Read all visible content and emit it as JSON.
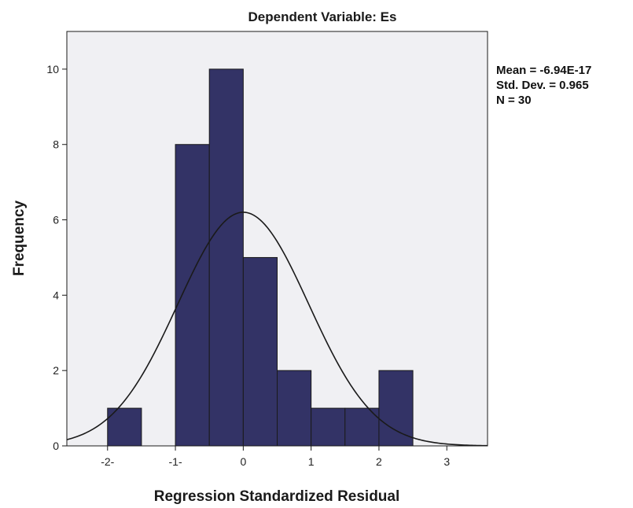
{
  "chart_data": {
    "type": "bar",
    "title": "Dependent Variable: Es",
    "xlabel": "Regression Standardized Residual",
    "ylabel": "Frequency",
    "xlim": [
      -2.6,
      3.6
    ],
    "ylim": [
      0,
      11
    ],
    "x_ticks": [
      "-2-",
      "-1-",
      "0",
      "1",
      "2",
      "3"
    ],
    "x_tick_values": [
      -2,
      -1,
      0,
      1,
      2,
      3
    ],
    "y_ticks": [
      "0",
      "2",
      "4",
      "6",
      "8",
      "10"
    ],
    "y_tick_values": [
      0,
      2,
      4,
      6,
      8,
      10
    ],
    "bins": [
      {
        "x0": -2.0,
        "x1": -1.5,
        "value": 1
      },
      {
        "x0": -1.5,
        "x1": -1.0,
        "value": 0
      },
      {
        "x0": -1.0,
        "x1": -0.5,
        "value": 8
      },
      {
        "x0": -0.5,
        "x1": 0.0,
        "value": 10
      },
      {
        "x0": 0.0,
        "x1": 0.5,
        "value": 5
      },
      {
        "x0": 0.5,
        "x1": 1.0,
        "value": 2
      },
      {
        "x0": 1.0,
        "x1": 1.5,
        "value": 1
      },
      {
        "x0": 1.5,
        "x1": 2.0,
        "value": 1
      },
      {
        "x0": 2.0,
        "x1": 2.5,
        "value": 2
      }
    ],
    "normal_curve": {
      "mean": 0,
      "std": 0.965,
      "n": 30,
      "bin_width": 0.5
    },
    "stats_lines": [
      "Mean = -6.94E-17",
      "Std. Dev. = 0.965",
      "N = 30"
    ],
    "grid": false,
    "colors": {
      "bar_fill": "#333366",
      "bar_edge": "#1a1a1a",
      "plot_bg": "#f0f0f3",
      "curve": "#1a1a1a"
    }
  }
}
